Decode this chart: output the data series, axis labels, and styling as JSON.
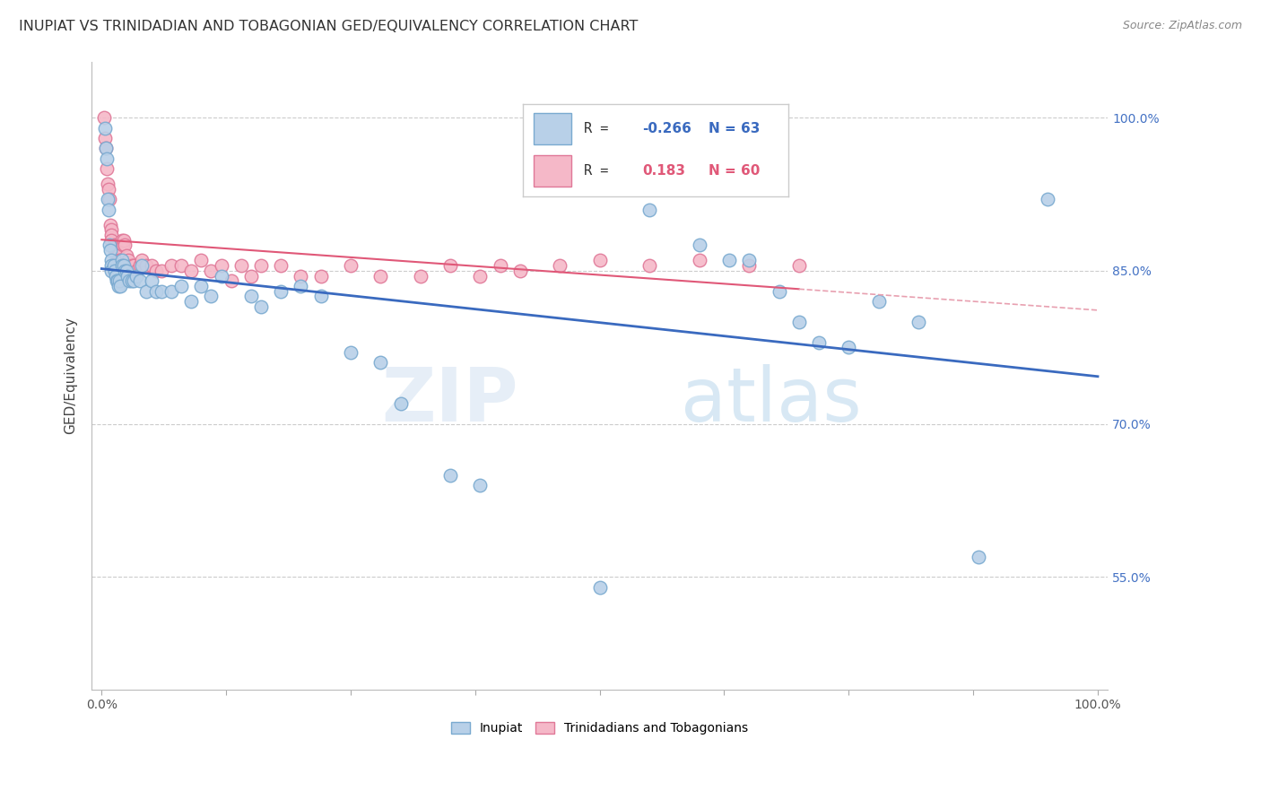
{
  "title": "INUPIAT VS TRINIDADIAN AND TOBAGONIAN GED/EQUIVALENCY CORRELATION CHART",
  "source": "Source: ZipAtlas.com",
  "ylabel": "GED/Equivalency",
  "ytick_labels": [
    "55.0%",
    "70.0%",
    "85.0%",
    "100.0%"
  ],
  "ytick_vals": [
    0.55,
    0.7,
    0.85,
    1.0
  ],
  "xlim": [
    -0.01,
    1.01
  ],
  "ylim": [
    0.44,
    1.055
  ],
  "inupiat_color": "#b8d0e8",
  "inupiat_edge_color": "#7aaad0",
  "trinidadian_color": "#f5b8c8",
  "trinidadian_edge_color": "#e07898",
  "inupiat_line_color": "#3a6abf",
  "trinidadian_line_color": "#e05878",
  "trinidadian_dashed_color": "#e8a0b0",
  "watermark_zip_color": "#dce8f4",
  "watermark_atlas_color": "#c8dff0",
  "inupiat_x": [
    0.003,
    0.004,
    0.005,
    0.006,
    0.007,
    0.008,
    0.009,
    0.01,
    0.01,
    0.01,
    0.012,
    0.013,
    0.014,
    0.015,
    0.016,
    0.017,
    0.018,
    0.019,
    0.02,
    0.02,
    0.022,
    0.023,
    0.025,
    0.026,
    0.028,
    0.03,
    0.032,
    0.035,
    0.038,
    0.04,
    0.045,
    0.05,
    0.055,
    0.06,
    0.07,
    0.08,
    0.09,
    0.1,
    0.11,
    0.12,
    0.15,
    0.16,
    0.18,
    0.2,
    0.22,
    0.25,
    0.28,
    0.3,
    0.35,
    0.38,
    0.5,
    0.55,
    0.6,
    0.63,
    0.65,
    0.68,
    0.7,
    0.72,
    0.75,
    0.78,
    0.82,
    0.88,
    0.95
  ],
  "inupiat_y": [
    0.99,
    0.97,
    0.96,
    0.92,
    0.91,
    0.875,
    0.87,
    0.86,
    0.855,
    0.85,
    0.855,
    0.85,
    0.845,
    0.84,
    0.84,
    0.835,
    0.84,
    0.835,
    0.86,
    0.855,
    0.855,
    0.85,
    0.85,
    0.845,
    0.84,
    0.84,
    0.84,
    0.845,
    0.84,
    0.855,
    0.83,
    0.84,
    0.83,
    0.83,
    0.83,
    0.835,
    0.82,
    0.835,
    0.825,
    0.845,
    0.825,
    0.815,
    0.83,
    0.835,
    0.825,
    0.77,
    0.76,
    0.72,
    0.65,
    0.64,
    0.54,
    0.91,
    0.875,
    0.86,
    0.86,
    0.83,
    0.8,
    0.78,
    0.775,
    0.82,
    0.8,
    0.57,
    0.92
  ],
  "trinidadian_x": [
    0.002,
    0.003,
    0.004,
    0.005,
    0.006,
    0.007,
    0.008,
    0.009,
    0.01,
    0.01,
    0.01,
    0.012,
    0.013,
    0.014,
    0.015,
    0.016,
    0.017,
    0.018,
    0.019,
    0.02,
    0.021,
    0.022,
    0.023,
    0.025,
    0.027,
    0.03,
    0.032,
    0.035,
    0.038,
    0.04,
    0.045,
    0.05,
    0.055,
    0.06,
    0.07,
    0.08,
    0.09,
    0.1,
    0.11,
    0.12,
    0.13,
    0.14,
    0.15,
    0.16,
    0.18,
    0.2,
    0.22,
    0.25,
    0.28,
    0.32,
    0.35,
    0.38,
    0.4,
    0.42,
    0.46,
    0.5,
    0.55,
    0.6,
    0.65,
    0.7
  ],
  "trinidadian_y": [
    1.0,
    0.98,
    0.97,
    0.95,
    0.935,
    0.93,
    0.92,
    0.895,
    0.89,
    0.885,
    0.88,
    0.875,
    0.87,
    0.875,
    0.87,
    0.865,
    0.865,
    0.86,
    0.86,
    0.88,
    0.875,
    0.88,
    0.875,
    0.865,
    0.86,
    0.855,
    0.855,
    0.85,
    0.855,
    0.86,
    0.855,
    0.855,
    0.85,
    0.85,
    0.855,
    0.855,
    0.85,
    0.86,
    0.85,
    0.855,
    0.84,
    0.855,
    0.845,
    0.855,
    0.855,
    0.845,
    0.845,
    0.855,
    0.845,
    0.845,
    0.855,
    0.845,
    0.855,
    0.85,
    0.855,
    0.86,
    0.855,
    0.86,
    0.855,
    0.855
  ],
  "legend_items": [
    {
      "color": "#b8d0e8",
      "edge": "#7aaad0",
      "r_label": "R = ",
      "r_val": "-0.266",
      "n_val": "N = 63",
      "text_color": "#3a6abf"
    },
    {
      "color": "#f5b8c8",
      "edge": "#e07898",
      "r_label": "R =  ",
      "r_val": "0.183",
      "n_val": "N = 60",
      "text_color": "#e05878"
    }
  ]
}
